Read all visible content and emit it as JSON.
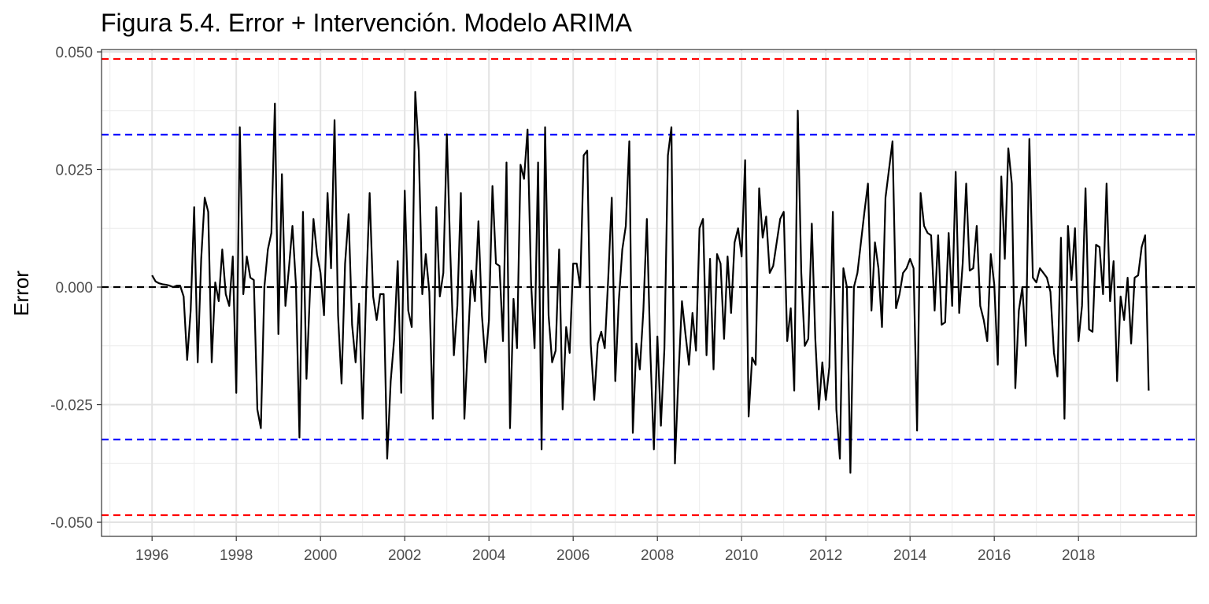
{
  "chart_data": {
    "type": "line",
    "title": "Figura 5.4. Error + Intervención. Modelo ARIMA",
    "xlabel": "",
    "ylabel": "Error",
    "xlim": [
      1994.8,
      2020.8
    ],
    "ylim": [
      -0.053,
      0.0505
    ],
    "x_ticks": [
      "1996",
      "1998",
      "2000",
      "2002",
      "2004",
      "2006",
      "2008",
      "2010",
      "2012",
      "2014",
      "2016",
      "2018"
    ],
    "y_ticks": [
      "0.050",
      "0.025",
      "0.000",
      "-0.025",
      "-0.050"
    ],
    "grid": true,
    "legend": "none",
    "reference_lines": [
      {
        "value": 0.0485,
        "color": "#ff0000"
      },
      {
        "value": 0.0324,
        "color": "#0000ff"
      },
      {
        "value": 0.0,
        "color": "#000000"
      },
      {
        "value": -0.0324,
        "color": "#0000ff"
      },
      {
        "value": -0.0485,
        "color": "#ff0000"
      }
    ],
    "series": [
      {
        "color": "#000000",
        "x_start": 1996.0,
        "x_step": 0.0833333,
        "values": [
          0.0025,
          0.0012,
          0.0008,
          0.0006,
          0.0005,
          0.0003,
          0.0,
          0.0003,
          0.0003,
          -0.002,
          -0.0155,
          -0.005,
          0.017,
          -0.016,
          0.006,
          0.019,
          0.016,
          -0.016,
          0.001,
          -0.003,
          0.008,
          -0.0015,
          -0.004,
          0.0065,
          -0.0225,
          0.034,
          -0.0015,
          0.0065,
          0.002,
          0.0015,
          -0.026,
          -0.03,
          0.0,
          0.008,
          0.0115,
          0.039,
          -0.01,
          0.024,
          -0.004,
          0.004,
          0.013,
          0.0005,
          -0.032,
          0.016,
          -0.0195,
          -0.001,
          0.0145,
          0.007,
          0.003,
          -0.006,
          0.02,
          0.004,
          0.0355,
          -0.006,
          -0.0205,
          0.005,
          0.0155,
          -0.008,
          -0.016,
          -0.0035,
          -0.028,
          -0.001,
          0.02,
          -0.002,
          -0.007,
          -0.0015,
          -0.0015,
          -0.0365,
          -0.02,
          -0.011,
          0.0055,
          -0.0225,
          0.0205,
          -0.005,
          -0.0085,
          0.0415,
          0.029,
          -0.0015,
          0.007,
          -0.001,
          -0.028,
          0.017,
          -0.002,
          0.003,
          0.0325,
          0.007,
          -0.0145,
          -0.004,
          0.02,
          -0.028,
          -0.012,
          0.0035,
          -0.003,
          0.014,
          -0.006,
          -0.016,
          -0.007,
          0.0215,
          0.005,
          0.0045,
          -0.0115,
          0.0265,
          -0.03,
          -0.0025,
          -0.013,
          0.026,
          0.023,
          0.0335,
          0.001,
          -0.013,
          0.0265,
          -0.0345,
          0.034,
          -0.006,
          -0.016,
          -0.0135,
          0.008,
          -0.026,
          -0.0085,
          -0.014,
          0.005,
          0.005,
          0.0,
          0.028,
          0.029,
          -0.012,
          -0.024,
          -0.012,
          -0.0095,
          -0.013,
          0.002,
          0.019,
          -0.02,
          -0.003,
          0.008,
          0.013,
          0.031,
          -0.031,
          -0.012,
          -0.0175,
          -0.005,
          0.0145,
          -0.014,
          -0.0345,
          -0.0105,
          -0.0295,
          -0.013,
          0.028,
          0.034,
          -0.0375,
          -0.019,
          -0.003,
          -0.01,
          -0.0165,
          -0.0055,
          -0.0135,
          0.0125,
          0.0145,
          -0.0145,
          0.006,
          -0.0175,
          0.007,
          0.005,
          -0.011,
          0.0065,
          -0.0055,
          0.0095,
          0.0125,
          0.0065,
          0.027,
          -0.0275,
          -0.015,
          -0.0165,
          0.021,
          0.0105,
          0.015,
          0.003,
          0.0045,
          0.0095,
          0.0145,
          0.016,
          -0.0115,
          -0.0045,
          -0.022,
          0.0375,
          0.003,
          -0.0125,
          -0.011,
          0.0135,
          -0.011,
          -0.026,
          -0.016,
          -0.024,
          -0.017,
          0.016,
          -0.026,
          -0.0365,
          0.004,
          0.0,
          -0.0395,
          0.0,
          0.003,
          0.0095,
          0.016,
          0.022,
          -0.005,
          0.0095,
          0.004,
          -0.0085,
          0.019,
          0.025,
          0.031,
          -0.0045,
          -0.0015,
          0.003,
          0.004,
          0.006,
          0.004,
          -0.0305,
          0.02,
          0.013,
          0.0115,
          0.011,
          -0.005,
          0.011,
          -0.008,
          -0.0075,
          0.0115,
          -0.004,
          0.0245,
          -0.0055,
          0.005,
          0.022,
          0.0035,
          0.004,
          0.013,
          -0.004,
          -0.007,
          -0.0115,
          0.007,
          0.0005,
          -0.0165,
          0.0235,
          0.006,
          0.0295,
          0.022,
          -0.0215,
          -0.005,
          0.0,
          -0.0125,
          0.0315,
          0.002,
          0.001,
          0.004,
          0.003,
          0.002,
          -0.001,
          -0.014,
          -0.019,
          0.0105,
          -0.028,
          0.013,
          0.0015,
          0.0125,
          -0.0115,
          -0.004,
          0.021,
          -0.009,
          -0.0095,
          0.009,
          0.0085,
          -0.0015,
          0.022,
          -0.003,
          0.0055,
          -0.02,
          -0.002,
          -0.007,
          0.002,
          -0.012,
          0.002,
          0.0025,
          0.0085,
          0.011,
          -0.022
        ]
      }
    ]
  }
}
